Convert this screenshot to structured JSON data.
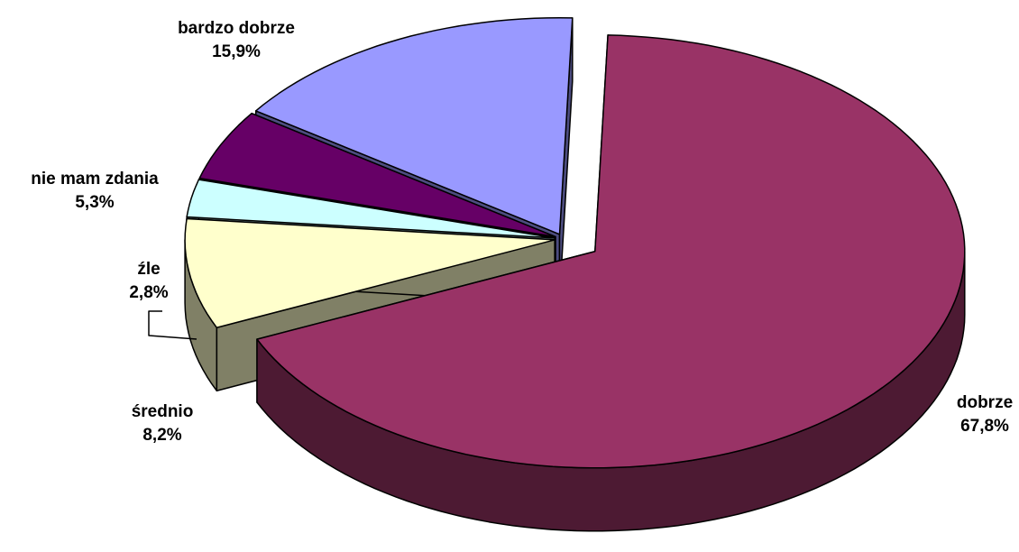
{
  "chart_data": {
    "type": "pie",
    "categories": [
      "dobrze",
      "średnio",
      "źle",
      "nie mam zdania",
      "bardzo dobrze"
    ],
    "values": [
      67.8,
      8.2,
      2.8,
      5.3,
      15.9
    ],
    "value_labels": [
      "67,8%",
      "8,2%",
      "2,8%",
      "5,3%",
      "15,9%"
    ],
    "colors": [
      "#993366",
      "#ffffcc",
      "#ccffff",
      "#660066",
      "#9999ff"
    ]
  }
}
